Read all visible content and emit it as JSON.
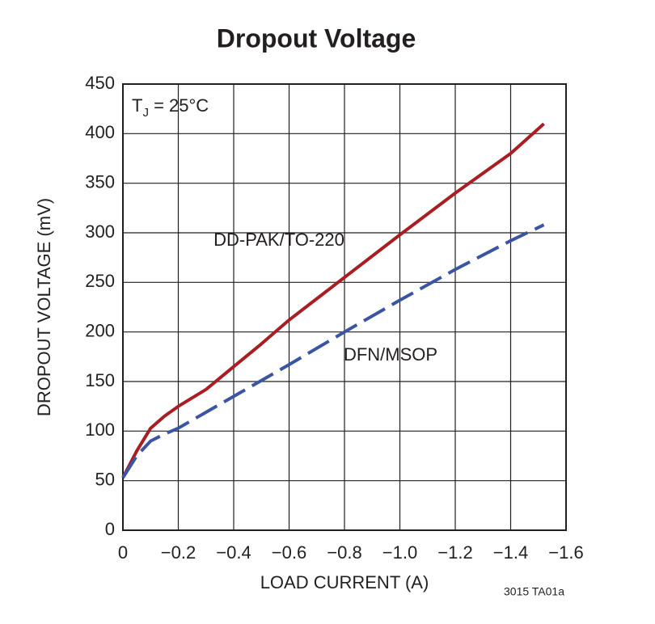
{
  "chart_data": {
    "type": "line",
    "title": "Dropout Voltage",
    "xlabel": "LOAD CURRENT (A)",
    "ylabel": "DROPOUT VOLTAGE (mV)",
    "annotation": [
      "T",
      "J",
      " = 25°C"
    ],
    "footnote": "3015 TA01a",
    "xlim": [
      0,
      -1.6
    ],
    "xticks": [
      0,
      {
        "value": -0.2,
        "label": "−0.2"
      },
      {
        "value": -0.4,
        "label": "−0.4"
      },
      {
        "value": -0.6,
        "label": "−0.6"
      },
      {
        "value": -0.8,
        "label": "−0.8"
      },
      {
        "value": -1.0,
        "label": "−1.0"
      },
      {
        "value": -1.2,
        "label": "−1.2"
      },
      {
        "value": -1.4,
        "label": "−1.4"
      },
      {
        "value": -1.6,
        "label": "−1.6"
      }
    ],
    "ylim": [
      0,
      450
    ],
    "yticks": [
      0,
      50,
      100,
      150,
      200,
      250,
      300,
      350,
      400,
      450
    ],
    "grid": true,
    "series": [
      {
        "name": "DD-PAK/TO-220",
        "color": "#a81e22",
        "line_style": "solid",
        "x": [
          0,
          -0.05,
          -0.1,
          -0.15,
          -0.2,
          -0.3,
          -0.4,
          -0.5,
          -0.6,
          -0.8,
          -1.0,
          -1.2,
          -1.4,
          -1.52
        ],
        "values": [
          53,
          80,
          103,
          115,
          125,
          142,
          165,
          188,
          212,
          255,
          298,
          340,
          380,
          410
        ]
      },
      {
        "name": "DFN/MSOP",
        "color": "#3a55a4",
        "line_style": "dashed",
        "x": [
          0,
          -0.05,
          -0.1,
          -0.15,
          -0.2,
          -0.4,
          -0.6,
          -0.8,
          -1.0,
          -1.2,
          -1.4,
          -1.52
        ],
        "values": [
          53,
          75,
          90,
          97,
          103,
          135,
          167,
          200,
          232,
          263,
          292,
          308
        ]
      }
    ]
  }
}
